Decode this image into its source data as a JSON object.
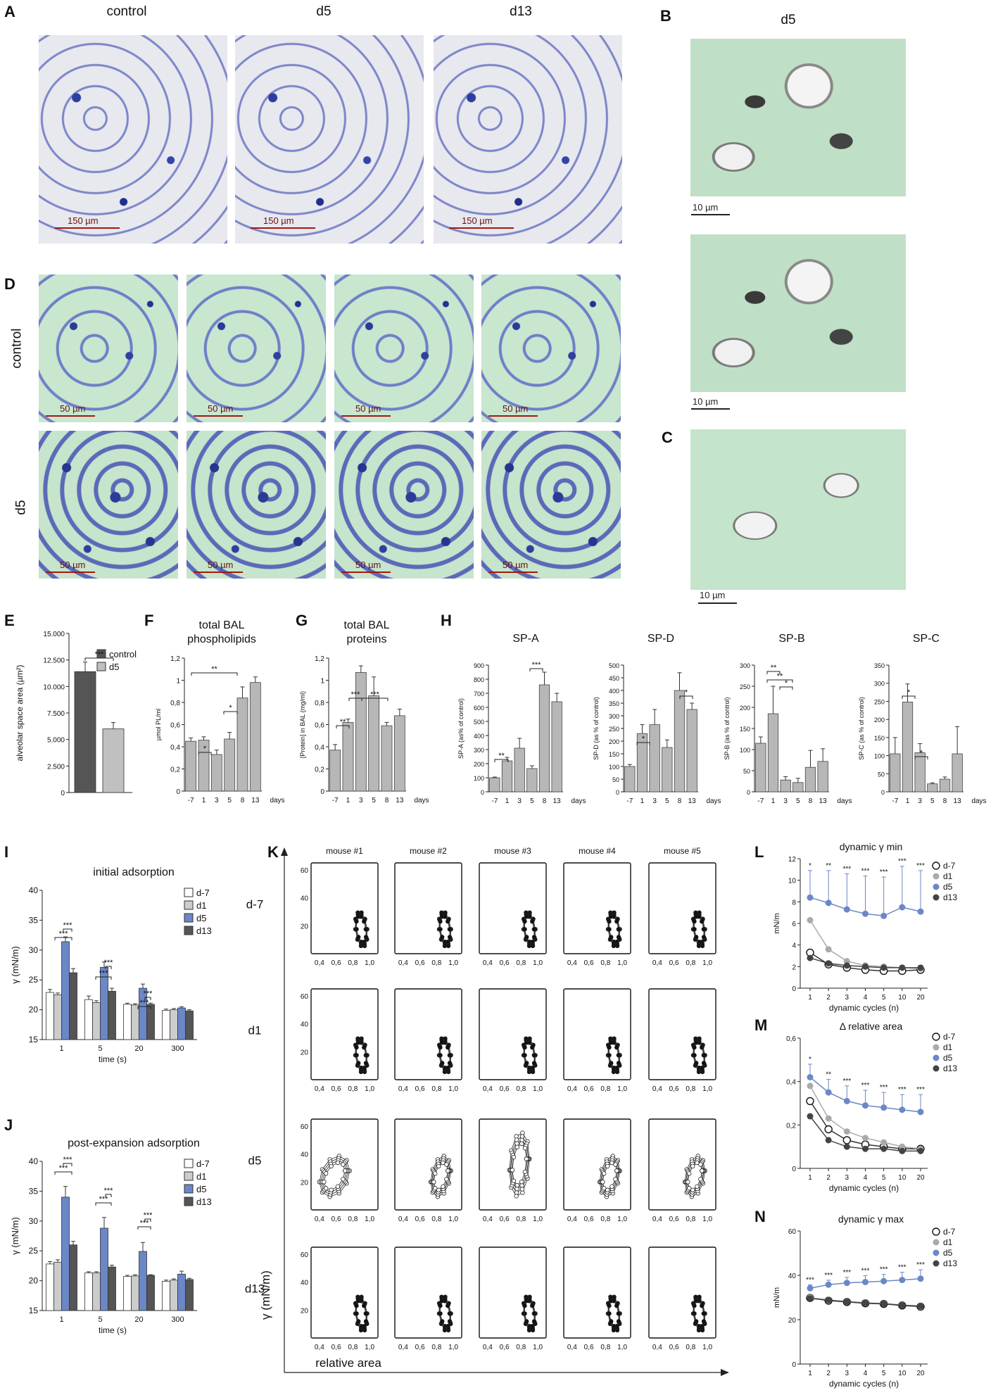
{
  "panelA": {
    "letter": "A",
    "titles": [
      "control",
      "d5",
      "d13"
    ],
    "scalebars": [
      "150 µm",
      "150 µm",
      "150 µm"
    ]
  },
  "panelB": {
    "letter": "B",
    "title": "d5",
    "scale": "10 µm",
    "scale2": "10 µm"
  },
  "panelC": {
    "letter": "C",
    "scale": "10 µm"
  },
  "panelD": {
    "letter": "D",
    "rows": [
      "control",
      "d5"
    ],
    "scale": "50 µm"
  },
  "chart_data": [
    {
      "panel": "E",
      "type": "bar",
      "ylabel": "alveolar space area (µm²)",
      "yticks": [
        "0",
        "2.500",
        "5.000",
        "7.500",
        "10.000",
        "12.500",
        "15.000"
      ],
      "ylim": [
        0,
        15000
      ],
      "series": [
        {
          "name": "control",
          "color": "#555555",
          "values": [
            11400
          ],
          "err": [
            900
          ]
        },
        {
          "name": "d5",
          "color": "#c0c0c0",
          "values": [
            6000
          ],
          "err": [
            600
          ]
        }
      ],
      "sig": "***"
    },
    {
      "panel": "F",
      "type": "bar",
      "title": [
        "total BAL",
        "phospholipids"
      ],
      "ylabel": "µmol PL/ml",
      "categories": [
        "-7",
        "1",
        "3",
        "5",
        "8",
        "13"
      ],
      "xunit": "days",
      "yticks": [
        "0",
        "0,2",
        "0,4",
        "0,6",
        "0,8",
        "1",
        "1,2"
      ],
      "ylim": [
        0,
        1.2
      ],
      "values": [
        0.45,
        0.46,
        0.33,
        0.47,
        0.84,
        0.98
      ],
      "err": [
        0.03,
        0.03,
        0.04,
        0.06,
        0.1,
        0.05
      ],
      "sig": [
        "*",
        "*",
        "**"
      ]
    },
    {
      "panel": "G",
      "type": "bar",
      "title": [
        "total BAL",
        "proteins"
      ],
      "ylabel": "[Protein] in BAL (mg/ml)",
      "categories": [
        "-7",
        "1",
        "3",
        "5",
        "8",
        "13"
      ],
      "xunit": "days",
      "yticks": [
        "0",
        "0,2",
        "0,4",
        "0,6",
        "0,8",
        "1",
        "1,2"
      ],
      "ylim": [
        0,
        1.2
      ],
      "values": [
        0.37,
        0.62,
        1.07,
        0.86,
        0.59,
        0.68
      ],
      "err": [
        0.05,
        0.03,
        0.06,
        0.17,
        0.03,
        0.06
      ],
      "sig": [
        "**",
        "***",
        "***"
      ]
    },
    {
      "panel": "H1",
      "type": "bar",
      "title": "SP-A",
      "ylabel": "SP-A (as% of control)",
      "categories": [
        "-7",
        "1",
        "3",
        "5",
        "8",
        "13"
      ],
      "xunit": "days",
      "yticks": [
        "0",
        "100",
        "200",
        "300",
        "400",
        "500",
        "600",
        "700",
        "800",
        "900"
      ],
      "ylim": [
        0,
        900
      ],
      "values": [
        100,
        220,
        310,
        165,
        760,
        640
      ],
      "err": [
        5,
        25,
        70,
        20,
        90,
        60
      ],
      "sig": [
        "**",
        "***"
      ]
    },
    {
      "panel": "H2",
      "type": "bar",
      "title": "SP-D",
      "ylabel": "SP-D (as % of control)",
      "categories": [
        "-7",
        "1",
        "3",
        "5",
        "8",
        "13"
      ],
      "xunit": "days",
      "yticks": [
        "0",
        "50",
        "100",
        "150",
        "200",
        "250",
        "300",
        "350",
        "400",
        "450",
        "500"
      ],
      "ylim": [
        0,
        500
      ],
      "values": [
        100,
        230,
        265,
        175,
        400,
        325
      ],
      "err": [
        8,
        35,
        60,
        30,
        70,
        25
      ],
      "sig": [
        "*",
        "*"
      ]
    },
    {
      "panel": "H3",
      "type": "bar",
      "title": "SP-B",
      "ylabel": "SP-B (as % of control)",
      "categories": [
        "-7",
        "1",
        "3",
        "5",
        "8",
        "13"
      ],
      "xunit": "days",
      "yticks": [
        "0",
        "50",
        "100",
        "150",
        "200",
        "250",
        "300"
      ],
      "ylim": [
        0,
        300
      ],
      "values": [
        115,
        185,
        28,
        22,
        58,
        72
      ],
      "err": [
        15,
        65,
        8,
        10,
        40,
        30
      ],
      "sig": [
        "**",
        "**",
        "*"
      ]
    },
    {
      "panel": "H4",
      "type": "bar",
      "title": "SP-C",
      "ylabel": "SP-C (as % of control)",
      "categories": [
        "-7",
        "1",
        "3",
        "5",
        "8",
        "13"
      ],
      "xunit": "days",
      "yticks": [
        "0",
        "50",
        "100",
        "150",
        "200",
        "250",
        "300",
        "350"
      ],
      "ylim": [
        0,
        350
      ],
      "values": [
        105,
        248,
        108,
        22,
        35,
        105
      ],
      "err": [
        45,
        50,
        25,
        3,
        6,
        75
      ],
      "sig": [
        "*",
        "*"
      ]
    },
    {
      "panel": "I",
      "type": "bar",
      "title": "initial adsorption",
      "ylabel": "γ (mN/m)",
      "xlabel": "time (s)",
      "categories": [
        "1",
        "5",
        "20",
        "300"
      ],
      "yticks": [
        "15",
        "20",
        "25",
        "30",
        "35",
        "40"
      ],
      "ylim": [
        15,
        40
      ],
      "series": [
        {
          "name": "d-7",
          "color": "#ffffff",
          "values": [
            22.9,
            21.7,
            20.9,
            19.9
          ],
          "err": [
            0.5,
            0.6,
            0.2,
            0.2
          ]
        },
        {
          "name": "d1",
          "color": "#cccccc",
          "values": [
            22.5,
            21.2,
            20.8,
            20.0
          ],
          "err": [
            0.3,
            0.3,
            0.2,
            0.2
          ]
        },
        {
          "name": "d5",
          "color": "#6b87c7",
          "values": [
            31.4,
            27.1,
            23.6,
            20.3
          ],
          "err": [
            0.8,
            0.9,
            0.7,
            0.2
          ]
        },
        {
          "name": "d13",
          "color": "#555555",
          "values": [
            26.2,
            23.1,
            20.9,
            19.8
          ],
          "err": [
            0.7,
            0.5,
            0.2,
            0.2
          ]
        }
      ],
      "sig": "***"
    },
    {
      "panel": "J",
      "type": "bar",
      "title": "post-expansion adsorption",
      "ylabel": "γ (mN/m)",
      "xlabel": "time (s)",
      "categories": [
        "1",
        "5",
        "20",
        "300"
      ],
      "yticks": [
        "15",
        "20",
        "25",
        "30",
        "35",
        "40"
      ],
      "ylim": [
        15,
        40
      ],
      "series": [
        {
          "name": "d-7",
          "color": "#ffffff",
          "values": [
            22.8,
            21.3,
            20.7,
            19.9
          ],
          "err": [
            0.4,
            0.2,
            0.2,
            0.2
          ]
        },
        {
          "name": "d1",
          "color": "#cccccc",
          "values": [
            23.1,
            21.3,
            20.8,
            20.1
          ],
          "err": [
            0.4,
            0.2,
            0.2,
            0.2
          ]
        },
        {
          "name": "d5",
          "color": "#6b87c7",
          "values": [
            34.0,
            28.8,
            24.9,
            21.1
          ],
          "err": [
            1.8,
            1.8,
            1.5,
            0.5
          ]
        },
        {
          "name": "d13",
          "color": "#555555",
          "values": [
            26.0,
            22.3,
            20.9,
            20.2
          ],
          "err": [
            0.6,
            0.3,
            0.1,
            0.2
          ]
        }
      ],
      "sig": "***"
    },
    {
      "panel": "K",
      "type": "scatter",
      "columns": [
        "mouse #1",
        "mouse #2",
        "mouse #3",
        "mouse #4",
        "mouse #5"
      ],
      "rows": [
        "d-7",
        "d1",
        "d5",
        "d13"
      ],
      "xlabel": "relative area",
      "ylabel": "γ (mN/m)",
      "xticks": [
        "0,4",
        "0,6",
        "0,8",
        "1,0"
      ],
      "yticks": [
        "20",
        "40",
        "60"
      ],
      "xlim": [
        0.3,
        1.1
      ],
      "ylim": [
        0,
        65
      ]
    },
    {
      "panel": "L",
      "type": "line",
      "title": "dynamic γ min",
      "ylabel": "mN/m",
      "xlabel": "dynamic cycles (n)",
      "categories": [
        "1",
        "2",
        "3",
        "4",
        "5",
        "10",
        "20"
      ],
      "yticks": [
        "0",
        "2",
        "4",
        "6",
        "8",
        "10",
        "12"
      ],
      "ylim": [
        0,
        12
      ],
      "series": [
        {
          "name": "d-7",
          "color": "#ffffff",
          "values": [
            3.3,
            2.2,
            1.9,
            1.7,
            1.6,
            1.6,
            1.7
          ]
        },
        {
          "name": "d1",
          "color": "#aaaaaa",
          "values": [
            6.3,
            3.6,
            2.5,
            2.1,
            2.0,
            1.9,
            1.8
          ]
        },
        {
          "name": "d5",
          "color": "#6b87c7",
          "values": [
            8.4,
            7.9,
            7.3,
            6.9,
            6.7,
            7.5,
            7.1
          ],
          "err": [
            2.5,
            3.0,
            3.3,
            3.5,
            3.6,
            3.8,
            3.8
          ]
        },
        {
          "name": "d13",
          "color": "#444444",
          "values": [
            2.8,
            2.3,
            2.1,
            2.0,
            1.9,
            1.9,
            1.9
          ]
        }
      ],
      "sig": [
        "*",
        "**",
        "***",
        "***",
        "***",
        "***",
        "***"
      ]
    },
    {
      "panel": "M",
      "type": "line",
      "title": "Δ relative area",
      "xlabel": "dynamic cycles (n)",
      "categories": [
        "1",
        "2",
        "3",
        "4",
        "5",
        "10",
        "20"
      ],
      "yticks": [
        "0",
        "0,2",
        "0,4",
        "0,6"
      ],
      "ylim": [
        0,
        0.6
      ],
      "series": [
        {
          "name": "d-7",
          "color": "#ffffff",
          "values": [
            0.31,
            0.18,
            0.13,
            0.11,
            0.1,
            0.09,
            0.09
          ]
        },
        {
          "name": "d1",
          "color": "#aaaaaa",
          "values": [
            0.38,
            0.23,
            0.17,
            0.14,
            0.12,
            0.1,
            0.09
          ]
        },
        {
          "name": "d5",
          "color": "#6b87c7",
          "values": [
            0.42,
            0.35,
            0.31,
            0.29,
            0.28,
            0.27,
            0.26
          ],
          "err": [
            0.06,
            0.06,
            0.07,
            0.07,
            0.07,
            0.07,
            0.08
          ]
        },
        {
          "name": "d13",
          "color": "#444444",
          "values": [
            0.24,
            0.13,
            0.1,
            0.09,
            0.09,
            0.08,
            0.08
          ]
        }
      ],
      "sig": [
        "*",
        "**",
        "***",
        "***",
        "***",
        "***",
        "***"
      ]
    },
    {
      "panel": "N",
      "type": "line",
      "title": "dynamic γ max",
      "ylabel": "mN/m",
      "xlabel": "dynamic cycles (n)",
      "categories": [
        "1",
        "2",
        "3",
        "4",
        "5",
        "10",
        "20"
      ],
      "yticks": [
        "0",
        "20",
        "40",
        "60"
      ],
      "ylim": [
        0,
        60
      ],
      "series": [
        {
          "name": "d-7",
          "color": "#ffffff",
          "values": [
            29.8,
            28.6,
            28.0,
            27.4,
            27.1,
            26.4,
            25.9
          ]
        },
        {
          "name": "d1",
          "color": "#aaaaaa",
          "values": [
            30.0,
            28.9,
            28.2,
            27.6,
            27.3,
            26.6,
            26.2
          ]
        },
        {
          "name": "d5",
          "color": "#6b87c7",
          "values": [
            34.2,
            35.8,
            36.6,
            37.0,
            37.4,
            37.9,
            38.5
          ],
          "err": [
            1.5,
            2.0,
            2.5,
            2.8,
            3.0,
            3.5,
            4.0
          ]
        },
        {
          "name": "d13",
          "color": "#444444",
          "values": [
            29.6,
            28.8,
            28.1,
            27.5,
            27.2,
            26.5,
            26.1
          ]
        }
      ],
      "sig": [
        "***",
        "***",
        "***",
        "***",
        "***",
        "***",
        "***"
      ]
    }
  ]
}
